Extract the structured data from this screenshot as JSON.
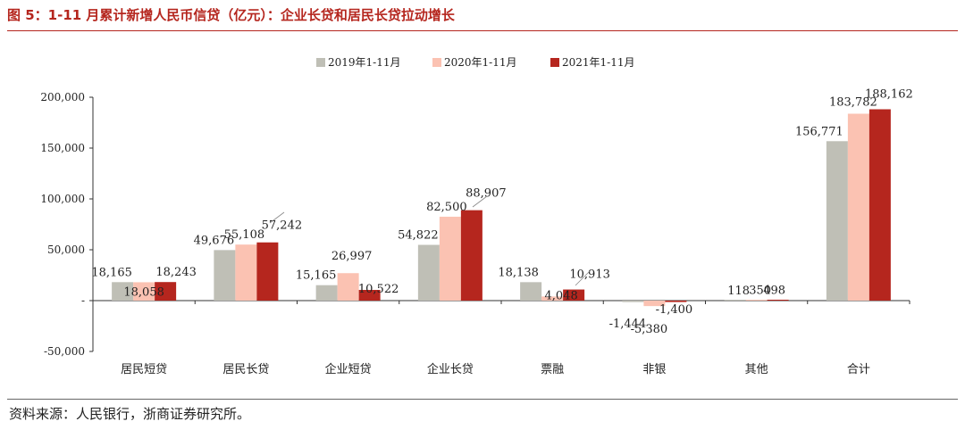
{
  "title": "图 5：1-11 月累计新增人民币信贷（亿元）：企业长贷和居民长贷拉动增长",
  "source": "资料来源：人民银行，浙商证券研究所。",
  "chart_data": {
    "type": "bar",
    "categories": [
      "居民短贷",
      "居民长贷",
      "企业短贷",
      "企业长贷",
      "票融",
      "非银",
      "其他",
      "合计"
    ],
    "series": [
      {
        "name": "2019年1-11月",
        "color": "#bfbfb6",
        "values": [
          18165,
          49676,
          15165,
          54822,
          18138,
          -1444,
          118,
          156771
        ],
        "labels": [
          "18,165",
          "49,676",
          "15,165",
          "54,822",
          "18,138",
          "-1,444",
          "118",
          "156,771"
        ]
      },
      {
        "name": "2020年1-11月",
        "color": "#fbc2b2",
        "values": [
          18058,
          55108,
          26997,
          82500,
          4048,
          -5380,
          350,
          183782
        ],
        "labels": [
          "18,058",
          "55,108",
          "26,997",
          "82,500",
          "4,048",
          "-5,380",
          "350",
          "183,782"
        ]
      },
      {
        "name": "2021年1-11月",
        "color": "#b5261e",
        "values": [
          18243,
          57242,
          10522,
          88907,
          10913,
          -1400,
          498,
          188162
        ],
        "labels": [
          "18,243",
          "57,242",
          "10,522",
          "88,907",
          "10,913",
          "-1,400",
          "498",
          "188,162"
        ]
      }
    ],
    "ylim": [
      -50000,
      200000
    ],
    "yticks": [
      {
        "value": 200000,
        "label": "200,000"
      },
      {
        "value": 150000,
        "label": "150,000"
      },
      {
        "value": 100000,
        "label": "100,000"
      },
      {
        "value": 50000,
        "label": "50,000"
      },
      {
        "value": 0,
        "label": "-"
      },
      {
        "value": -50000,
        "label": "-50,000"
      }
    ],
    "legend_position": "top-center",
    "grid": false
  }
}
